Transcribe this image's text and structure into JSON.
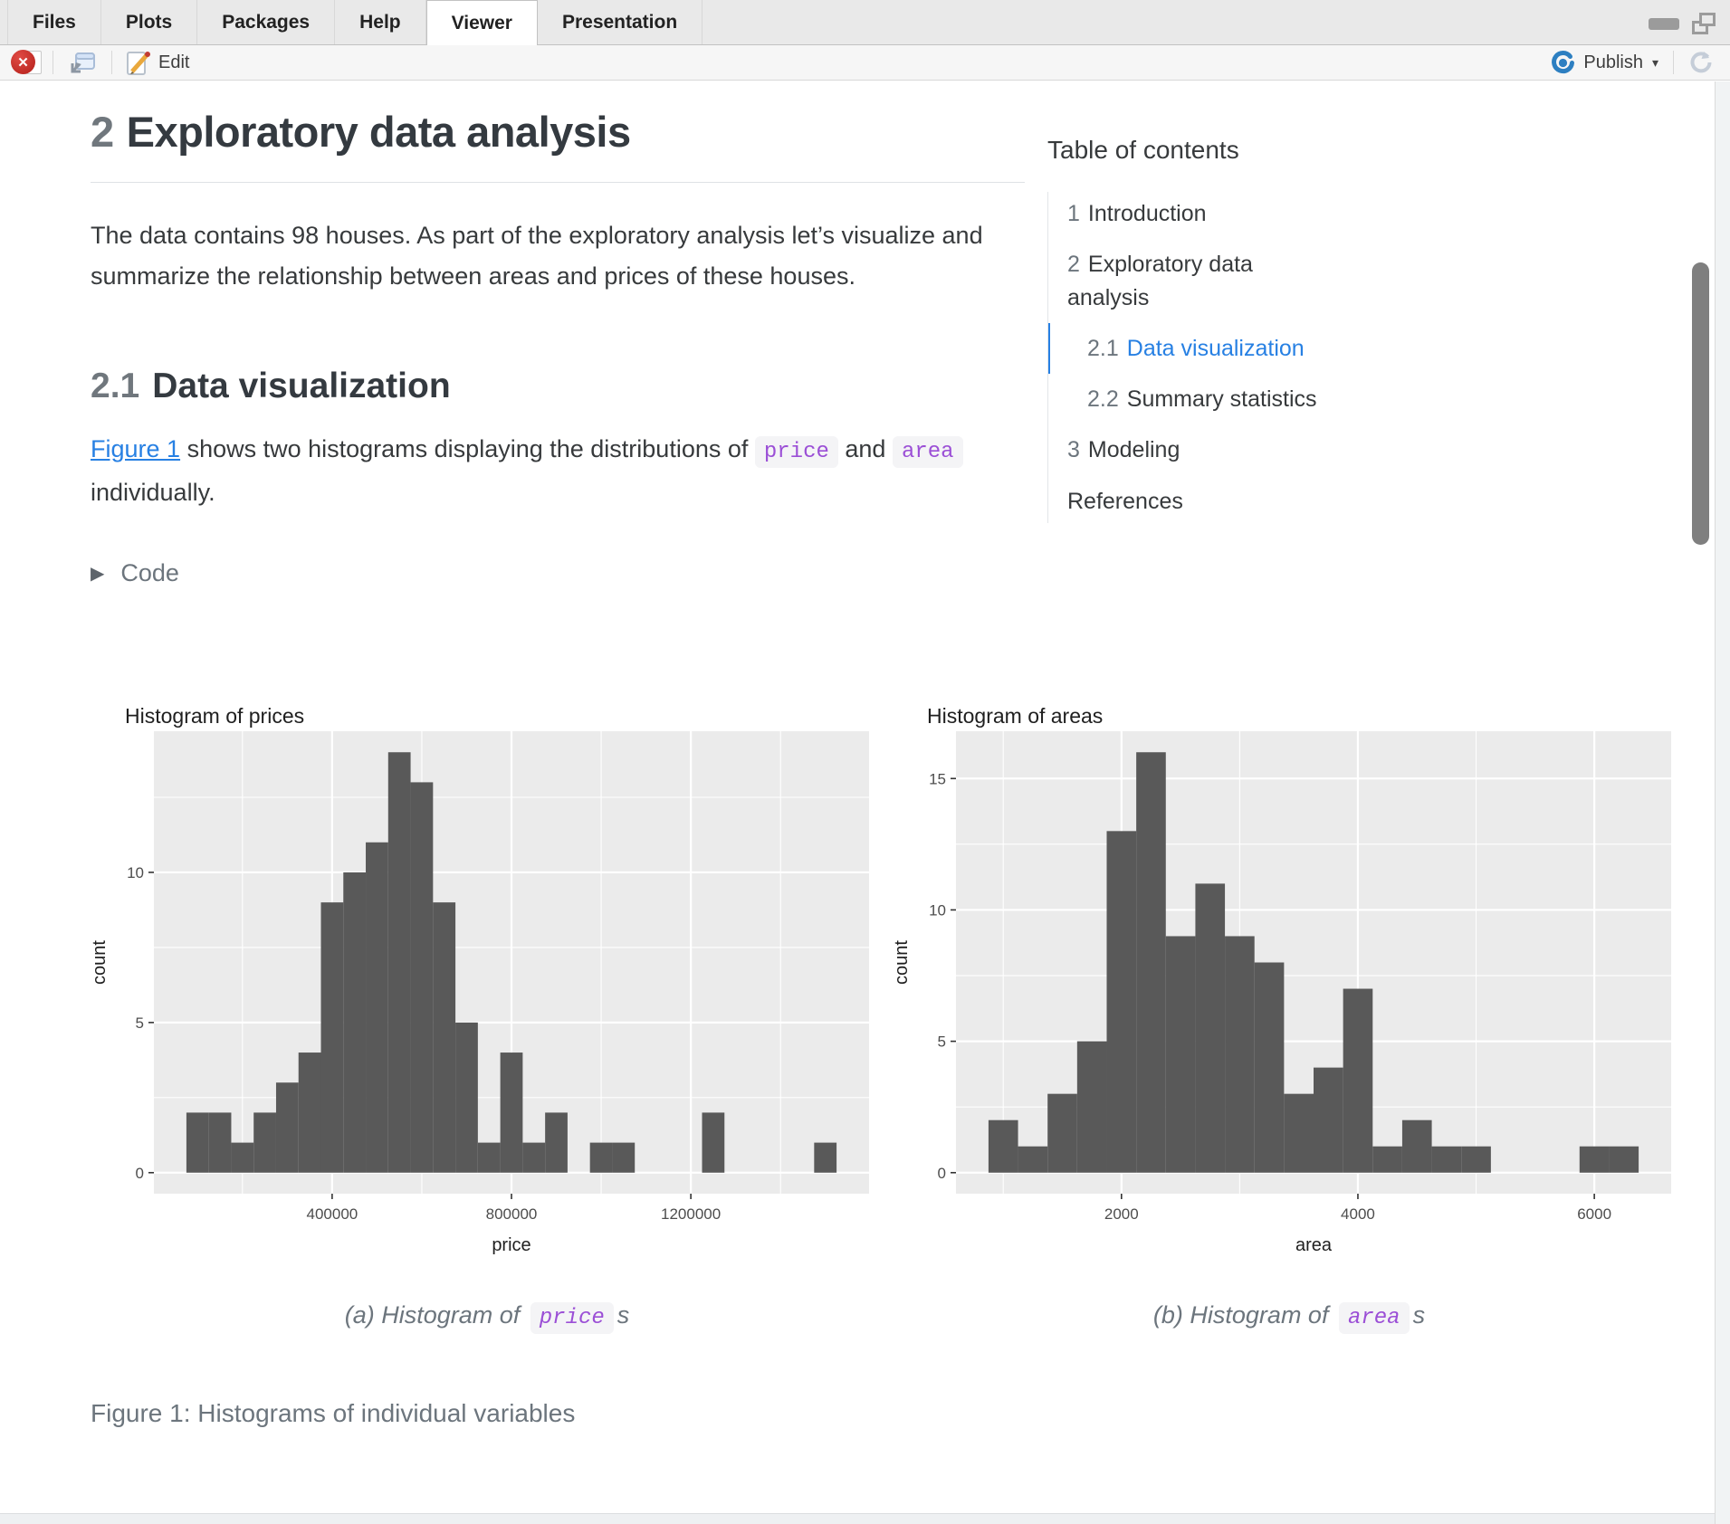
{
  "tabs": {
    "active": "Viewer",
    "items": [
      {
        "label": "Files"
      },
      {
        "label": "Plots"
      },
      {
        "label": "Packages"
      },
      {
        "label": "Help"
      },
      {
        "label": "Viewer"
      },
      {
        "label": "Presentation"
      }
    ]
  },
  "toolbar": {
    "edit_label": "Edit",
    "publish_label": "Publish"
  },
  "document": {
    "section_number": "2",
    "section_title": "Exploratory data analysis",
    "intro_text": "The data contains 98 houses. As part of the exploratory analysis let’s visualize and summarize the relationship between areas and prices of these houses.",
    "subsection_number": "2.1",
    "subsection_title": "Data visualization",
    "figure_link_label": "Figure 1",
    "para2_mid": " shows two histograms displaying the distributions of ",
    "code_price": "price",
    "para2_and": " and ",
    "code_area": "area",
    "para2_end": " individually.",
    "code_toggle_label": "Code",
    "caption_a_prefix": "(a) Histogram of ",
    "caption_a_code": "price",
    "caption_a_suffix": "s",
    "caption_b_prefix": "(b) Histogram of ",
    "caption_b_code": "area",
    "caption_b_suffix": "s",
    "figure_caption": "Figure 1: Histograms of individual variables"
  },
  "toc": {
    "title": "Table of contents",
    "items": [
      {
        "number": "1",
        "label": "Introduction",
        "indent": false,
        "active": false
      },
      {
        "number": "2",
        "label": "Exploratory data analysis",
        "indent": false,
        "active": false
      },
      {
        "number": "2.1",
        "label": "Data visualization",
        "indent": true,
        "active": true
      },
      {
        "number": "2.2",
        "label": "Summary statistics",
        "indent": true,
        "active": false
      },
      {
        "number": "3",
        "label": "Modeling",
        "indent": false,
        "active": false
      },
      {
        "number": "",
        "label": "References",
        "indent": false,
        "active": false
      }
    ]
  },
  "chart_data": [
    {
      "type": "bar",
      "title": "Histogram of prices",
      "xlabel": "price",
      "ylabel": "count",
      "bin_start": 75000,
      "bin_width": 50000,
      "counts": [
        2,
        2,
        1,
        2,
        3,
        4,
        9,
        10,
        11,
        14,
        13,
        9,
        5,
        1,
        4,
        1,
        2,
        0,
        1,
        1,
        0,
        0,
        0,
        2,
        0,
        0,
        0,
        0,
        1
      ],
      "total_count": 98,
      "xlim": [
        2500,
        1597500
      ],
      "ylim": [
        -0.7,
        14.7
      ],
      "xticks": [
        400000,
        800000,
        1200000
      ],
      "xtick_labels": [
        "400000",
        "800000",
        "1200000"
      ],
      "x_minor": [
        200000,
        600000,
        1000000,
        1400000
      ],
      "yticks": [
        0,
        5,
        10
      ],
      "y_minor": [
        2.5,
        7.5,
        12.5
      ],
      "grid": true,
      "legend": "none"
    },
    {
      "type": "bar",
      "title": "Histogram of areas",
      "xlabel": "area",
      "ylabel": "count",
      "bin_start": 875,
      "bin_width": 250,
      "counts": [
        2,
        1,
        3,
        5,
        13,
        16,
        9,
        11,
        9,
        8,
        3,
        4,
        7,
        1,
        2,
        1,
        1,
        0,
        0,
        0,
        1,
        1
      ],
      "total_count": 98,
      "xlim": [
        600,
        6650
      ],
      "ylim": [
        -0.8,
        16.8
      ],
      "xticks": [
        2000,
        4000,
        6000
      ],
      "xtick_labels": [
        "2000",
        "4000",
        "6000"
      ],
      "x_minor": [
        1000,
        3000,
        5000
      ],
      "yticks": [
        0,
        5,
        10,
        15
      ],
      "y_minor": [
        2.5,
        7.5,
        12.5
      ],
      "grid": true,
      "legend": "none"
    }
  ],
  "colors": {
    "accent_blue": "#2780e3",
    "code_purple": "#9b4fd6",
    "bar_fill": "#595959",
    "panel_bg": "#ebebeb",
    "axis_text": "#4d4d4d",
    "muted_text": "#6c757d",
    "publish_blue": "#2d7fc1"
  }
}
